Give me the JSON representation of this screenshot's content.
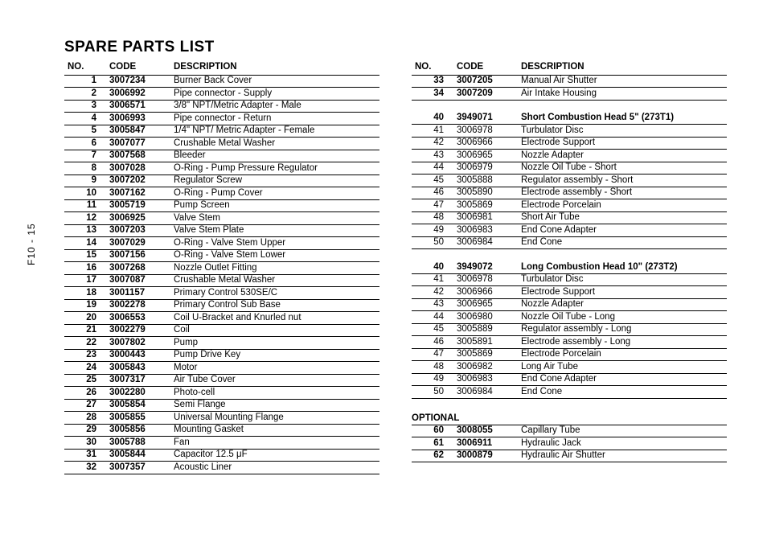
{
  "page_label": "F10 - 15",
  "title": "SPARE PARTS LIST",
  "headers": {
    "no": "NO.",
    "code": "CODE",
    "desc": "DESCRIPTION"
  },
  "optional_label": "OPTIONAL",
  "left": [
    {
      "no": "1",
      "code": "3007234",
      "desc": "Burner Back Cover"
    },
    {
      "no": "2",
      "code": "3006992",
      "desc": "Pipe connector - Supply"
    },
    {
      "no": "3",
      "code": "3006571",
      "desc": "3/8\" NPT/Metric Adapter - Male"
    },
    {
      "no": "4",
      "code": "3006993",
      "desc": "Pipe connector - Return"
    },
    {
      "no": "5",
      "code": "3005847",
      "desc": "1/4\" NPT/ Metric Adapter - Female"
    },
    {
      "no": "6",
      "code": "3007077",
      "desc": "Crushable Metal Washer"
    },
    {
      "no": "7",
      "code": "3007568",
      "desc": "Bleeder"
    },
    {
      "no": "8",
      "code": "3007028",
      "desc": "O-Ring - Pump Pressure Regulator"
    },
    {
      "no": "9",
      "code": "3007202",
      "desc": "Regulator Screw"
    },
    {
      "no": "10",
      "code": "3007162",
      "desc": "O-Ring - Pump Cover"
    },
    {
      "no": "11",
      "code": "3005719",
      "desc": "Pump Screen"
    },
    {
      "no": "12",
      "code": "3006925",
      "desc": "Valve Stem"
    },
    {
      "no": "13",
      "code": "3007203",
      "desc": "Valve Stem Plate"
    },
    {
      "no": "14",
      "code": "3007029",
      "desc": "O-Ring - Valve Stem Upper"
    },
    {
      "no": "15",
      "code": "3007156",
      "desc": "O-Ring - Valve Stem Lower"
    },
    {
      "no": "16",
      "code": "3007268",
      "desc": "Nozzle Outlet Fitting"
    },
    {
      "no": "17",
      "code": "3007087",
      "desc": "Crushable Metal Washer"
    },
    {
      "no": "18",
      "code": "3001157",
      "desc": "Primary Control 530SE/C"
    },
    {
      "no": "19",
      "code": "3002278",
      "desc": "Primary Control Sub Base"
    },
    {
      "no": "20",
      "code": "3006553",
      "desc": "Coil U-Bracket and Knurled nut"
    },
    {
      "no": "21",
      "code": "3002279",
      "desc": "Coil"
    },
    {
      "no": "22",
      "code": "3007802",
      "desc": "Pump"
    },
    {
      "no": "23",
      "code": "3000443",
      "desc": "Pump Drive Key"
    },
    {
      "no": "24",
      "code": "3005843",
      "desc": "Motor"
    },
    {
      "no": "25",
      "code": "3007317",
      "desc": "Air Tube Cover"
    },
    {
      "no": "26",
      "code": "3002280",
      "desc": "Photo-cell"
    },
    {
      "no": "27",
      "code": "3005854",
      "desc": "Semi Flange"
    },
    {
      "no": "28",
      "code": "3005855",
      "desc": "Universal Mounting Flange"
    },
    {
      "no": "29",
      "code": "3005856",
      "desc": "Mounting Gasket"
    },
    {
      "no": "30",
      "code": "3005788",
      "desc": "Fan"
    },
    {
      "no": "31",
      "code": "3005844",
      "desc": "Capacitor 12.5 μF"
    },
    {
      "no": "32",
      "code": "3007357",
      "desc": "Acoustic Liner"
    }
  ],
  "right_a": [
    {
      "no": "33",
      "code": "3007205",
      "desc": "Manual Air Shutter"
    },
    {
      "no": "34",
      "code": "3007209",
      "desc": "Air Intake Housing"
    }
  ],
  "right_b_header": {
    "no": "40",
    "code": "3949071",
    "desc": "Short Combustion Head 5\" (273T1)"
  },
  "right_b": [
    {
      "no": "41",
      "code": "3006978",
      "desc": "Turbulator Disc"
    },
    {
      "no": "42",
      "code": "3006966",
      "desc": "Electrode Support"
    },
    {
      "no": "43",
      "code": "3006965",
      "desc": "Nozzle Adapter"
    },
    {
      "no": "44",
      "code": "3006979",
      "desc": "Nozzle Oil Tube - Short"
    },
    {
      "no": "45",
      "code": "3005888",
      "desc": "Regulator assembly - Short"
    },
    {
      "no": "46",
      "code": "3005890",
      "desc": "Electrode assembly - Short"
    },
    {
      "no": "47",
      "code": "3005869",
      "desc": "Electrode Porcelain"
    },
    {
      "no": "48",
      "code": "3006981",
      "desc": "Short Air Tube"
    },
    {
      "no": "49",
      "code": "3006983",
      "desc": "End Cone Adapter"
    },
    {
      "no": "50",
      "code": "3006984",
      "desc": "End Cone"
    }
  ],
  "right_c_header": {
    "no": "40",
    "code": "3949072",
    "desc": "Long Combustion Head 10\" (273T2)"
  },
  "right_c": [
    {
      "no": "41",
      "code": "3006978",
      "desc": "Turbulator Disc"
    },
    {
      "no": "42",
      "code": "3006966",
      "desc": "Electrode Support"
    },
    {
      "no": "43",
      "code": "3006965",
      "desc": "Nozzle Adapter"
    },
    {
      "no": "44",
      "code": "3006980",
      "desc": "Nozzle Oil Tube - Long"
    },
    {
      "no": "45",
      "code": "3005889",
      "desc": "Regulator assembly - Long"
    },
    {
      "no": "46",
      "code": "3005891",
      "desc": "Electrode assembly - Long"
    },
    {
      "no": "47",
      "code": "3005869",
      "desc": "Electrode Porcelain"
    },
    {
      "no": "48",
      "code": "3006982",
      "desc": "Long Air Tube"
    },
    {
      "no": "49",
      "code": "3006983",
      "desc": "End Cone Adapter"
    },
    {
      "no": "50",
      "code": "3006984",
      "desc": "End Cone"
    }
  ],
  "optional": [
    {
      "no": "60",
      "code": "3008055",
      "desc": "Capillary Tube"
    },
    {
      "no": "61",
      "code": "3006911",
      "desc": "Hydraulic Jack"
    },
    {
      "no": "62",
      "code": "3000879",
      "desc": "Hydraulic Air Shutter"
    }
  ]
}
